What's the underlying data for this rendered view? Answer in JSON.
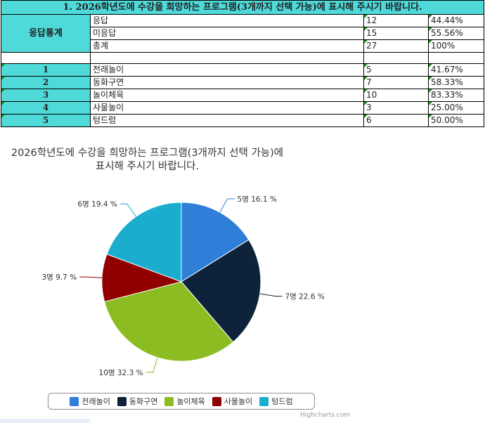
{
  "table": {
    "title": "1. 2026학년도에 수강을 희망하는 프로그램(3개까지 선택 가능)에 표시해 주시기 바랍니다.",
    "stats_label": "응답통계",
    "stats": [
      {
        "label": "응답",
        "count": "12",
        "percent": "44.44%"
      },
      {
        "label": "미응답",
        "count": "15",
        "percent": "55.56%"
      },
      {
        "label": "총계",
        "count": "27",
        "percent": "100%"
      }
    ],
    "options": [
      {
        "num": "1",
        "label": "전래놀이",
        "count": "5",
        "percent": "41.67%"
      },
      {
        "num": "2",
        "label": "동화구연",
        "count": "7",
        "percent": "58.33%"
      },
      {
        "num": "3",
        "label": "놀이체육",
        "count": "10",
        "percent": "83.33%"
      },
      {
        "num": "4",
        "label": "사물놀이",
        "count": "3",
        "percent": "25.00%"
      },
      {
        "num": "5",
        "label": "텅드럼",
        "count": "6",
        "percent": "50.00%"
      }
    ]
  },
  "chart_data": {
    "type": "pie",
    "title": "2026학년도에 수강을 희망하는 프로그램(3개까지 선택 가능)에 표시해 주시기 바랍니다.",
    "categories": [
      "전래놀이",
      "동화구연",
      "놀이체육",
      "사물놀이",
      "텅드럼"
    ],
    "values": [
      5,
      7,
      10,
      3,
      6
    ],
    "data_labels": [
      "5명 16.1 %",
      "7명 22.6 %",
      "10명 32.3 %",
      "3명 9.7 %",
      "6명 19.4 %"
    ],
    "colors": [
      "#2f7ed8",
      "#0d233a",
      "#8bbc21",
      "#910000",
      "#1aadce"
    ],
    "legend_position": "bottom"
  },
  "credits": "Highcharts.com"
}
